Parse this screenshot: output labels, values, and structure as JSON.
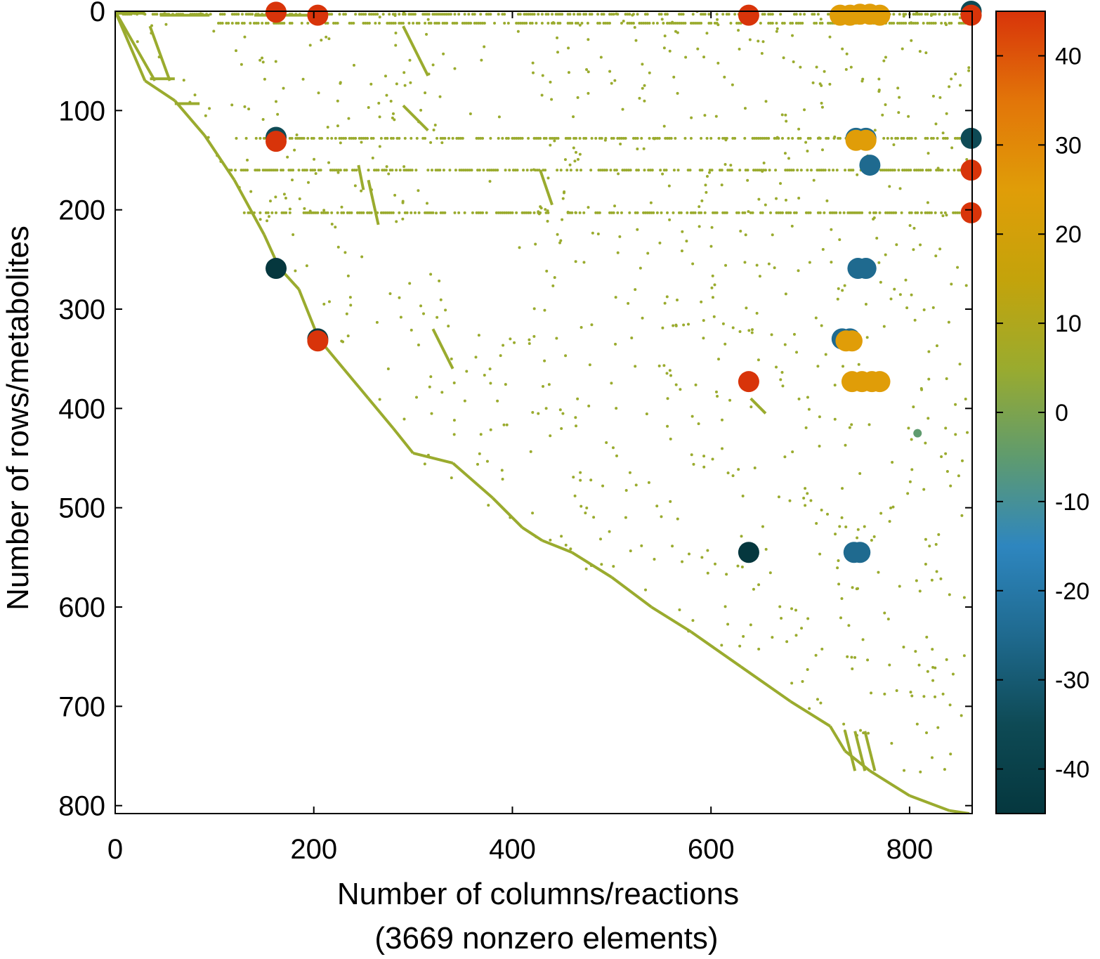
{
  "chart_data": {
    "type": "scatter",
    "title": "",
    "xlabel": "Number of columns/reactions",
    "xlabel_note": "(3669 nonzero elements)",
    "ylabel": "Number of rows/metabolites",
    "xlim": [
      0,
      863
    ],
    "ylim": [
      808,
      0
    ],
    "y_inverted": true,
    "x_ticks": [
      0,
      200,
      400,
      600,
      800
    ],
    "y_ticks": [
      0,
      100,
      200,
      300,
      400,
      500,
      600,
      700,
      800
    ],
    "grid": false,
    "colorbar": {
      "range": [
        -45,
        45
      ],
      "ticks": [
        40,
        30,
        20,
        10,
        0,
        -10,
        -20,
        -30,
        -40
      ],
      "tick_labels": [
        "40",
        "30",
        "20",
        "10",
        "0",
        "-10",
        "-20",
        "-30",
        "-40"
      ],
      "colors": [
        "#d8340a",
        "#e27509",
        "#e09d08",
        "#c4a30b",
        "#9aab2e",
        "#5f9b6e",
        "#2e86bf",
        "#1f6a8f",
        "#0e4a55",
        "#05373e"
      ]
    },
    "small_point_color": "#9aab2e",
    "diagonal_path": [
      [
        0,
        0
      ],
      [
        30,
        70
      ],
      [
        60,
        90
      ],
      [
        90,
        125
      ],
      [
        120,
        170
      ],
      [
        150,
        225
      ],
      [
        165,
        258
      ],
      [
        185,
        280
      ],
      [
        205,
        330
      ],
      [
        230,
        360
      ],
      [
        255,
        390
      ],
      [
        280,
        420
      ],
      [
        300,
        445
      ],
      [
        340,
        455
      ],
      [
        380,
        490
      ],
      [
        410,
        520
      ],
      [
        430,
        533
      ],
      [
        460,
        545
      ],
      [
        500,
        570
      ],
      [
        540,
        600
      ],
      [
        580,
        625
      ],
      [
        630,
        660
      ],
      [
        680,
        695
      ],
      [
        720,
        720
      ],
      [
        735,
        745
      ],
      [
        760,
        765
      ],
      [
        800,
        790
      ],
      [
        840,
        805
      ],
      [
        860,
        808
      ]
    ],
    "extra_segments": [
      [
        [
          35,
          15
        ],
        [
          55,
          70
        ]
      ],
      [
        [
          0,
          0
        ],
        [
          40,
          70
        ]
      ],
      [
        [
          35,
          68
        ],
        [
          60,
          68
        ]
      ],
      [
        [
          60,
          93
        ],
        [
          85,
          93
        ]
      ],
      [
        [
          0,
          2
        ],
        [
          30,
          2
        ]
      ],
      [
        [
          45,
          4
        ],
        [
          95,
          4
        ]
      ],
      [
        [
          140,
          4
        ],
        [
          200,
          4
        ]
      ],
      [
        [
          290,
          15
        ],
        [
          315,
          65
        ]
      ],
      [
        [
          290,
          95
        ],
        [
          315,
          120
        ]
      ],
      [
        [
          428,
          160
        ],
        [
          440,
          195
        ]
      ],
      [
        [
          255,
          170
        ],
        [
          265,
          215
        ]
      ],
      [
        [
          320,
          320
        ],
        [
          340,
          360
        ]
      ],
      [
        [
          640,
          390
        ],
        [
          655,
          405
        ]
      ],
      [
        [
          245,
          155
        ],
        [
          250,
          180
        ]
      ]
    ],
    "row_bands": [
      {
        "y": 128,
        "x_from": 120,
        "x_to": 860
      },
      {
        "y": 160,
        "x_from": 115,
        "x_to": 860
      },
      {
        "y": 203,
        "x_from": 130,
        "x_to": 860
      },
      {
        "y": 3,
        "x_from": 0,
        "x_to": 860
      },
      {
        "y": 12,
        "x_from": 100,
        "x_to": 860
      }
    ],
    "large_points": [
      {
        "x": 162,
        "y": 1,
        "value": 42
      },
      {
        "x": 204,
        "y": 4,
        "value": 42
      },
      {
        "x": 638,
        "y": 4,
        "value": 42
      },
      {
        "x": 862,
        "y": 0,
        "value": -30
      },
      {
        "x": 862,
        "y": 4,
        "value": 42
      },
      {
        "x": 730,
        "y": 4,
        "value": 22
      },
      {
        "x": 740,
        "y": 4,
        "value": 22
      },
      {
        "x": 750,
        "y": 3,
        "value": 22
      },
      {
        "x": 760,
        "y": 3,
        "value": 22
      },
      {
        "x": 770,
        "y": 4,
        "value": 22
      },
      {
        "x": 162,
        "y": 127,
        "value": -35
      },
      {
        "x": 162,
        "y": 131,
        "value": 42
      },
      {
        "x": 862,
        "y": 128,
        "value": -38
      },
      {
        "x": 862,
        "y": 160,
        "value": 42
      },
      {
        "x": 862,
        "y": 203,
        "value": 42
      },
      {
        "x": 746,
        "y": 128,
        "value": -22
      },
      {
        "x": 756,
        "y": 128,
        "value": -22
      },
      {
        "x": 746,
        "y": 130,
        "value": 22
      },
      {
        "x": 756,
        "y": 130,
        "value": 22
      },
      {
        "x": 760,
        "y": 155,
        "value": -22
      },
      {
        "x": 162,
        "y": 259,
        "value": -42
      },
      {
        "x": 748,
        "y": 259,
        "value": -22
      },
      {
        "x": 756,
        "y": 259,
        "value": -22
      },
      {
        "x": 204,
        "y": 330,
        "value": -40
      },
      {
        "x": 204,
        "y": 332,
        "value": 42
      },
      {
        "x": 732,
        "y": 330,
        "value": -22
      },
      {
        "x": 740,
        "y": 330,
        "value": -22
      },
      {
        "x": 736,
        "y": 332,
        "value": 22
      },
      {
        "x": 742,
        "y": 332,
        "value": 22
      },
      {
        "x": 638,
        "y": 373,
        "value": 42
      },
      {
        "x": 742,
        "y": 373,
        "value": 22
      },
      {
        "x": 752,
        "y": 373,
        "value": 22
      },
      {
        "x": 762,
        "y": 373,
        "value": 22
      },
      {
        "x": 770,
        "y": 373,
        "value": 22
      },
      {
        "x": 638,
        "y": 545,
        "value": -43
      },
      {
        "x": 744,
        "y": 545,
        "value": -22
      },
      {
        "x": 750,
        "y": 545,
        "value": -22
      },
      {
        "x": 808,
        "y": 425,
        "value": -5
      }
    ]
  }
}
